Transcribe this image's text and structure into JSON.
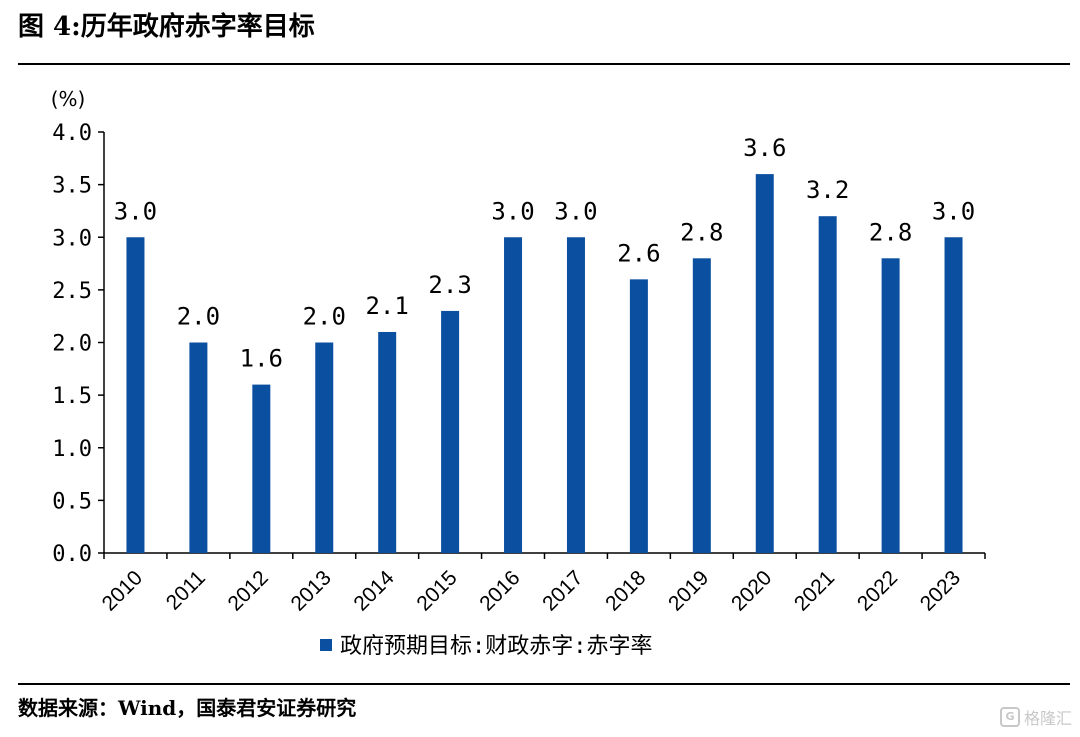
{
  "figure_title": "图 4:历年政府赤字率目标",
  "source_text": "数据来源：Wind，国泰君安证券研究",
  "watermark": {
    "badge": "G",
    "text": "格隆汇"
  },
  "chart_data": {
    "type": "bar",
    "title": "",
    "unit_label": "(%)",
    "categories": [
      "2010",
      "2011",
      "2012",
      "2013",
      "2014",
      "2015",
      "2016",
      "2017",
      "2018",
      "2019",
      "2020",
      "2021",
      "2022",
      "2023"
    ],
    "series": [
      {
        "name": "政府预期目标:财政赤字:赤字率",
        "values": [
          3.0,
          2.0,
          1.6,
          2.0,
          2.1,
          2.3,
          3.0,
          3.0,
          2.6,
          2.8,
          3.6,
          3.2,
          2.8,
          3.0
        ],
        "labels": [
          "3.0",
          "2.0",
          "1.6",
          "2.0",
          "2.1",
          "2.3",
          "3.0",
          "3.0",
          "2.6",
          "2.8",
          "3.6",
          "3.2",
          "2.8",
          "3.0"
        ]
      }
    ],
    "ylim": [
      0,
      4.0
    ],
    "yticks": [
      "0.0",
      "0.5",
      "1.0",
      "1.5",
      "2.0",
      "2.5",
      "3.0",
      "3.5",
      "4.0"
    ],
    "grid": false,
    "legend_position": "bottom",
    "color": "#0b4fa0"
  }
}
